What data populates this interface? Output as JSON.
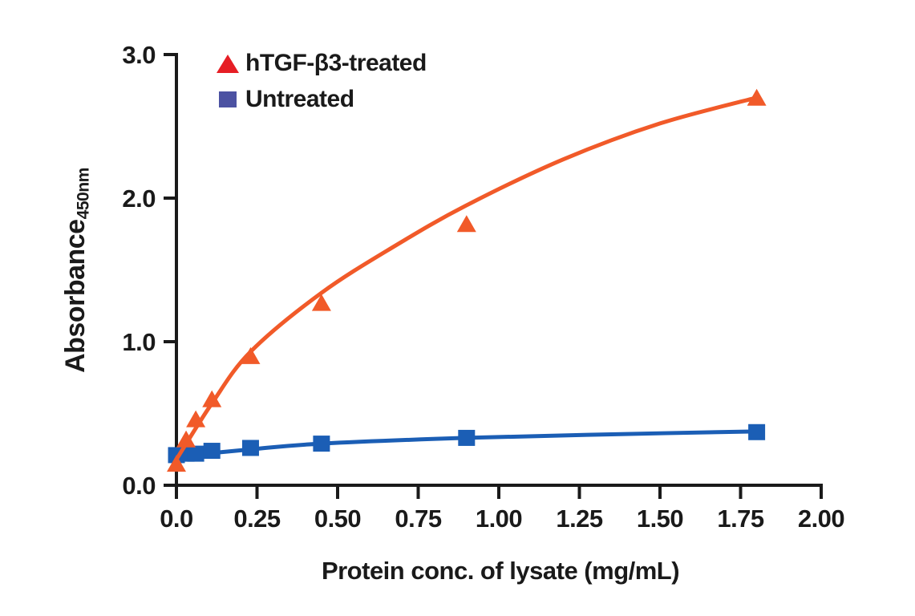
{
  "chart_data": {
    "type": "scatter",
    "title": "",
    "xlabel": "Protein conc. of lysate (mg/mL)",
    "ylabel": "Absorbance",
    "ylabel_subscript": "450nm",
    "xlim": [
      0,
      2.0
    ],
    "ylim": [
      0,
      3.0
    ],
    "grid": false,
    "legend_position": "top-left",
    "axis_color": "#1A1A1A",
    "x_ticks": [
      {
        "value": 0,
        "label": "0.0"
      },
      {
        "value": 0.25,
        "label": "0.25"
      },
      {
        "value": 0.5,
        "label": "0.50"
      },
      {
        "value": 0.75,
        "label": "0.75"
      },
      {
        "value": 1.0,
        "label": "1.00"
      },
      {
        "value": 1.25,
        "label": "1.25"
      },
      {
        "value": 1.5,
        "label": "1.50"
      },
      {
        "value": 1.75,
        "label": "1.75"
      },
      {
        "value": 2.0,
        "label": "2.00"
      }
    ],
    "y_ticks": [
      {
        "value": 0,
        "label": "0.0"
      },
      {
        "value": 1,
        "label": "1.0"
      },
      {
        "value": 2,
        "label": "2.0"
      },
      {
        "value": 3,
        "label": "3.0"
      }
    ],
    "series": [
      {
        "name": "Untreated",
        "marker": "square",
        "color": "#1B5EB5",
        "points": [
          [
            0,
            0.21
          ],
          [
            0.03,
            0.22
          ],
          [
            0.06,
            0.22
          ],
          [
            0.11,
            0.24
          ],
          [
            0.23,
            0.26
          ],
          [
            0.45,
            0.29
          ],
          [
            0.9,
            0.33
          ],
          [
            1.8,
            0.37
          ]
        ],
        "trend": [
          [
            0,
            0.2
          ],
          [
            0.23,
            0.25
          ],
          [
            0.45,
            0.29
          ],
          [
            0.9,
            0.33
          ],
          [
            1.35,
            0.355
          ],
          [
            1.8,
            0.375
          ]
        ]
      },
      {
        "name": "hTGF-β3-treated",
        "marker": "triangle",
        "color": "#F15A29",
        "points": [
          [
            0,
            0.15
          ],
          [
            0.03,
            0.32
          ],
          [
            0.06,
            0.46
          ],
          [
            0.11,
            0.6
          ],
          [
            0.23,
            0.9
          ],
          [
            0.45,
            1.27
          ],
          [
            0.9,
            1.82
          ],
          [
            1.8,
            2.7
          ]
        ],
        "trend": [
          [
            0,
            0.18
          ],
          [
            0.11,
            0.57
          ],
          [
            0.23,
            0.93
          ],
          [
            0.45,
            1.34
          ],
          [
            0.68,
            1.67
          ],
          [
            0.9,
            1.95
          ],
          [
            1.2,
            2.27
          ],
          [
            1.5,
            2.52
          ],
          [
            1.8,
            2.7
          ]
        ]
      }
    ],
    "legend": [
      {
        "label": "hTGF-β3-treated",
        "marker": "triangle",
        "color": "#E61E25"
      },
      {
        "label": "Untreated",
        "marker": "square",
        "color": "#4C52A2"
      }
    ]
  }
}
